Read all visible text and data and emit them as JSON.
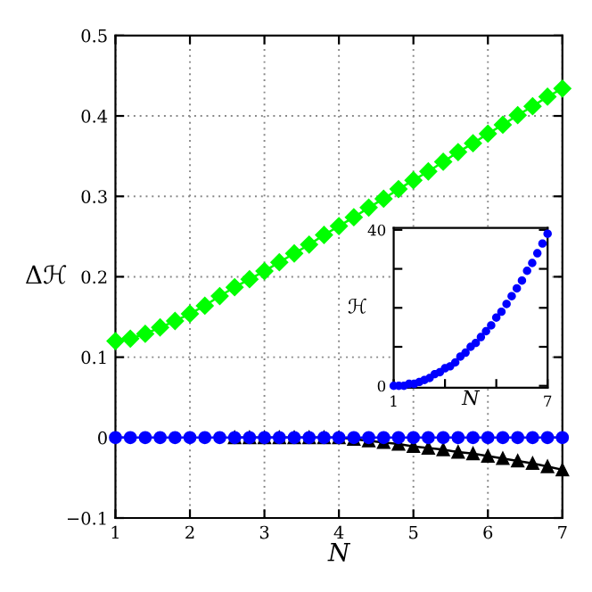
{
  "chart_data": [
    {
      "type": "line",
      "xlabel": "N",
      "ylabel": "Δℋ",
      "xlim": [
        1,
        7
      ],
      "ylim": [
        -0.1,
        0.5
      ],
      "xticks": [
        1,
        2,
        3,
        4,
        5,
        6,
        7
      ],
      "yticks": [
        -0.1,
        0,
        0.1,
        0.2,
        0.3,
        0.4,
        0.5
      ],
      "grid": true,
      "series": [
        {
          "color": "#00ff00",
          "marker": "diamond",
          "x": [
            1,
            1.2,
            1.4,
            1.6,
            1.8,
            2,
            2.2,
            2.4,
            2.6,
            2.8,
            3,
            3.2,
            3.4,
            3.6,
            3.8,
            4,
            4.2,
            4.4,
            4.6,
            4.8,
            5,
            5.2,
            5.4,
            5.6,
            5.8,
            6,
            6.2,
            6.4,
            6.6,
            6.8,
            7
          ],
          "values": [
            0.12,
            0.123,
            0.129,
            0.137,
            0.145,
            0.154,
            0.164,
            0.176,
            0.187,
            0.197,
            0.207,
            0.218,
            0.229,
            0.24,
            0.252,
            0.263,
            0.274,
            0.286,
            0.297,
            0.309,
            0.32,
            0.331,
            0.343,
            0.355,
            0.366,
            0.378,
            0.389,
            0.401,
            0.412,
            0.424,
            0.434
          ]
        },
        {
          "color": "#000000",
          "marker": "triangle",
          "x": [
            2.6,
            2.8,
            3,
            3.2,
            3.4,
            3.6,
            3.8,
            4,
            4.2,
            4.4,
            4.6,
            4.8,
            5,
            5.2,
            5.4,
            5.6,
            5.8,
            6,
            6.2,
            6.4,
            6.6,
            6.8,
            7
          ],
          "values": [
            0,
            0,
            0,
            0,
            0,
            0,
            0,
            0,
            -0.002,
            -0.004,
            -0.006,
            -0.008,
            -0.011,
            -0.013,
            -0.015,
            -0.018,
            -0.02,
            -0.023,
            -0.026,
            -0.029,
            -0.032,
            -0.036,
            -0.04
          ]
        },
        {
          "color": "#0000ff",
          "marker": "circle",
          "x": [
            1,
            1.2,
            1.4,
            1.6,
            1.8,
            2,
            2.2,
            2.4,
            2.6,
            2.8,
            3,
            3.2,
            3.4,
            3.6,
            3.8,
            4,
            4.2,
            4.4,
            4.6,
            4.8,
            5,
            5.2,
            5.4,
            5.6,
            5.8,
            6,
            6.2,
            6.4,
            6.6,
            6.8,
            7
          ],
          "values": [
            0,
            0,
            0,
            0,
            0,
            0,
            0,
            0,
            0,
            0,
            0,
            0,
            0,
            0,
            0,
            0,
            0,
            0,
            0,
            0,
            0,
            0,
            0,
            0,
            0,
            0,
            0,
            0,
            0,
            0,
            0
          ]
        }
      ]
    },
    {
      "type": "scatter",
      "xlabel": "N",
      "ylabel": "ℋ",
      "xlim": [
        1,
        7
      ],
      "ylim": [
        -0.5,
        40.5
      ],
      "xticks": [
        1,
        {
          "value": 3,
          "label": null
        },
        {
          "value": 5,
          "label": null
        },
        7
      ],
      "yticks": [
        0,
        {
          "value": 10,
          "label": null
        },
        {
          "value": 20,
          "label": null
        },
        {
          "value": 30,
          "label": null
        },
        40
      ],
      "series": [
        {
          "color": "#0000ff",
          "marker": "circle",
          "x": [
            1,
            1.2,
            1.4,
            1.6,
            1.8,
            2,
            2.2,
            2.4,
            2.6,
            2.8,
            3,
            3.2,
            3.4,
            3.6,
            3.8,
            4,
            4.2,
            4.4,
            4.6,
            4.8,
            5,
            5.2,
            5.4,
            5.6,
            5.8,
            6,
            6.2,
            6.4,
            6.6,
            6.8,
            7
          ],
          "values": [
            0,
            0,
            0,
            0.5,
            0.5,
            1,
            1.5,
            2,
            3,
            3.5,
            4.5,
            5,
            6,
            7.5,
            8.5,
            10,
            11,
            12.5,
            14,
            15.5,
            17.5,
            19,
            21,
            23,
            25,
            27,
            29.5,
            31.5,
            34,
            36.5,
            39
          ]
        }
      ]
    }
  ]
}
